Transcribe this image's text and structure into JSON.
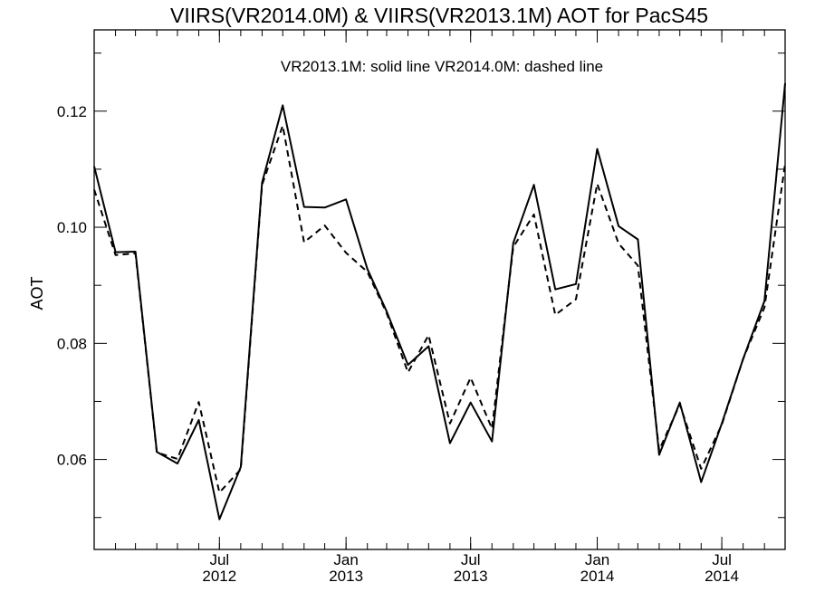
{
  "chart_data": {
    "type": "line",
    "title": "VIIRS(VR2014.0M) & VIIRS(VR2013.1M)  AOT for PacS45",
    "annotation": "VR2013.1M: solid line   VR2014.0M: dashed line",
    "xlabel": "",
    "ylabel": "AOT",
    "ylim": [
      0.0445,
      0.134
    ],
    "y_ticks": [
      {
        "value": 0.06,
        "label": "0.06"
      },
      {
        "value": 0.08,
        "label": "0.08"
      },
      {
        "value": 0.1,
        "label": "0.10"
      },
      {
        "value": 0.12,
        "label": "0.12"
      }
    ],
    "x_ticks": [
      {
        "date": "2012-07-01",
        "month": "Jul",
        "year": "2012"
      },
      {
        "date": "2013-01-01",
        "month": "Jan",
        "year": "2013"
      },
      {
        "date": "2013-07-01",
        "month": "Jul",
        "year": "2013"
      },
      {
        "date": "2014-01-01",
        "month": "Jan",
        "year": "2014"
      },
      {
        "date": "2014-07-01",
        "month": "Jul",
        "year": "2014"
      }
    ],
    "x_dates": [
      "2012-01",
      "2012-02",
      "2012-03",
      "2012-04",
      "2012-05",
      "2012-06",
      "2012-07",
      "2012-08",
      "2012-09",
      "2012-10",
      "2012-11",
      "2012-12",
      "2013-01",
      "2013-02",
      "2013-03",
      "2013-04",
      "2013-05",
      "2013-06",
      "2013-07",
      "2013-08",
      "2013-09",
      "2013-10",
      "2013-11",
      "2013-12",
      "2014-01",
      "2014-02",
      "2014-03",
      "2014-04",
      "2014-05",
      "2014-06",
      "2014-07",
      "2014-08",
      "2014-09",
      "2014-10"
    ],
    "series": [
      {
        "name": "VR2013.1M",
        "style": "solid",
        "color": "#000000",
        "values": [
          0.1105,
          0.0957,
          0.0958,
          0.0613,
          0.0593,
          0.0668,
          0.0497,
          0.0587,
          0.1077,
          0.121,
          0.1035,
          0.1034,
          0.1048,
          0.0928,
          0.0855,
          0.0763,
          0.0795,
          0.0628,
          0.0698,
          0.0631,
          0.0973,
          0.1073,
          0.0893,
          0.0902,
          0.1135,
          0.1002,
          0.0979,
          0.0608,
          0.0698,
          0.0561,
          0.0662,
          0.0773,
          0.0873,
          0.1248
        ]
      },
      {
        "name": "VR2014.0M",
        "style": "dashed",
        "color": "#000000",
        "values": [
          0.1065,
          0.0952,
          0.0955,
          0.0612,
          0.0601,
          0.0699,
          0.0543,
          0.0583,
          0.1073,
          0.1175,
          0.0974,
          0.1003,
          0.0956,
          0.0923,
          0.0852,
          0.075,
          0.0814,
          0.0662,
          0.0741,
          0.0653,
          0.0966,
          0.1022,
          0.0849,
          0.0876,
          0.1075,
          0.0972,
          0.0934,
          0.0616,
          0.0695,
          0.0584,
          0.066,
          0.0773,
          0.0862,
          0.1109
        ]
      }
    ],
    "grid": false,
    "legend": "none (annotation text at top)"
  }
}
